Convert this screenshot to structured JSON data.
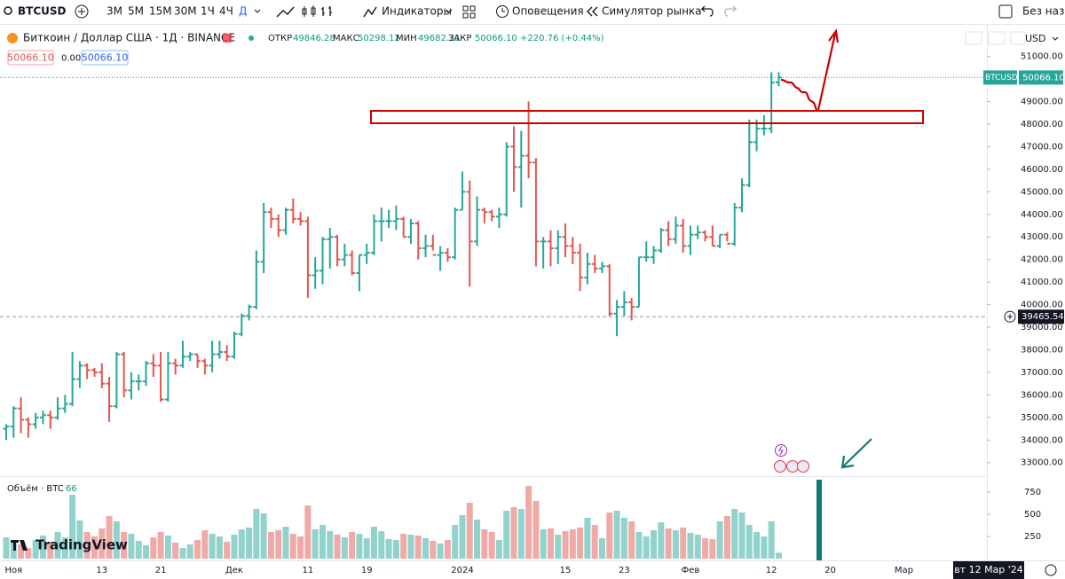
{
  "toolbar": {
    "symbol": "BTCUSD",
    "intervals": [
      "3М",
      "5М",
      "15М",
      "30М",
      "1Ч",
      "4Ч",
      "Д"
    ],
    "indicators": "Индикаторы",
    "alerts": "Оповещения",
    "replay": "Симулятор рынка",
    "layout": "Без назва"
  },
  "legend": {
    "title": "Биткоин / Доллар США · 1Д · BINANCE",
    "open_label": "ОТКР",
    "open": "49846.28",
    "high_label": "МАКС",
    "high": "50298.12",
    "low_label": "МИН",
    "low": "49682.21",
    "close_label": "ЗАКР",
    "close": "50066.10",
    "change": "+220.76 (+0.44%)",
    "sell": "50066.10",
    "spread": "0.00",
    "buy": "50066.10",
    "currency": "USD",
    "volume_title": "Объём · BTC"
  },
  "logo": "TradingView",
  "chart_data": {
    "type": "ohlc",
    "up_color": "#26a69a",
    "down_color": "#e0564f",
    "categories": [
      null,
      "Ноя",
      null,
      null,
      null,
      null,
      null,
      null,
      null,
      null,
      null,
      null,
      null,
      "13",
      null,
      null,
      null,
      null,
      null,
      null,
      null,
      "21",
      null,
      null,
      null,
      null,
      null,
      null,
      null,
      null,
      null,
      "Дек",
      null,
      null,
      null,
      null,
      null,
      null,
      null,
      null,
      null,
      "11",
      null,
      null,
      null,
      null,
      null,
      null,
      null,
      "19",
      null,
      null,
      null,
      null,
      null,
      null,
      null,
      null,
      null,
      null,
      null,
      null,
      "2024",
      null,
      null,
      null,
      null,
      null,
      null,
      null,
      null,
      null,
      null,
      null,
      null,
      null,
      "15",
      null,
      null,
      null,
      null,
      null,
      null,
      null,
      "23",
      null,
      null,
      null,
      null,
      null,
      null,
      null,
      null,
      "Фев",
      null,
      null,
      null,
      null,
      null,
      null,
      null,
      null,
      null,
      null,
      "12",
      null,
      null,
      null,
      null,
      null,
      null,
      null,
      "20",
      null,
      null,
      null,
      null,
      null,
      null,
      null,
      null,
      null,
      "Мар",
      null,
      null,
      null,
      null,
      null,
      null,
      null
    ],
    "ohlc": [
      [
        34500,
        34700,
        34000,
        34600
      ],
      [
        34600,
        35500,
        34100,
        35400
      ],
      [
        35400,
        35900,
        34300,
        34900
      ],
      [
        34900,
        35000,
        34100,
        34700
      ],
      [
        34700,
        35200,
        34500,
        35000
      ],
      [
        35000,
        35300,
        34700,
        35100
      ],
      [
        35100,
        35300,
        34500,
        35000
      ],
      [
        35000,
        35900,
        34900,
        35400
      ],
      [
        35400,
        36000,
        35200,
        35600
      ],
      [
        35600,
        37900,
        35500,
        36700
      ],
      [
        36700,
        37500,
        36300,
        37300
      ],
      [
        37300,
        37400,
        36700,
        37100
      ],
      [
        37100,
        37200,
        36800,
        37000
      ],
      [
        37000,
        37400,
        36300,
        36500
      ],
      [
        36500,
        36800,
        34800,
        35500
      ],
      [
        35500,
        37900,
        35400,
        37800
      ],
      [
        37800,
        37900,
        35900,
        36200
      ],
      [
        36200,
        37000,
        35800,
        36600
      ],
      [
        36600,
        36900,
        36200,
        36600
      ],
      [
        36600,
        37500,
        36400,
        37400
      ],
      [
        37400,
        37800,
        36800,
        37300
      ],
      [
        37300,
        37900,
        35700,
        35800
      ],
      [
        35800,
        37900,
        35700,
        37400
      ],
      [
        37400,
        37600,
        36900,
        37300
      ],
      [
        37300,
        38400,
        37200,
        37700
      ],
      [
        37700,
        37900,
        37500,
        37800
      ],
      [
        37800,
        37800,
        37200,
        37500
      ],
      [
        37500,
        37600,
        36900,
        37300
      ],
      [
        37300,
        38400,
        37000,
        37800
      ],
      [
        37800,
        38400,
        37600,
        37900
      ],
      [
        37900,
        38200,
        37500,
        37700
      ],
      [
        37700,
        38800,
        37600,
        38700
      ],
      [
        38700,
        39600,
        38600,
        39500
      ],
      [
        39500,
        40000,
        39300,
        39900
      ],
      [
        39900,
        42400,
        39800,
        41900
      ],
      [
        41900,
        44500,
        41400,
        44100
      ],
      [
        44100,
        44300,
        43400,
        43800
      ],
      [
        43800,
        44000,
        43000,
        43300
      ],
      [
        43300,
        44300,
        43100,
        44200
      ],
      [
        44200,
        44700,
        43600,
        43800
      ],
      [
        43800,
        44100,
        43500,
        43700
      ],
      [
        43700,
        43900,
        40300,
        41300
      ],
      [
        41300,
        42100,
        40700,
        41500
      ],
      [
        41500,
        43000,
        40900,
        42900
      ],
      [
        42900,
        43400,
        41600,
        43000
      ],
      [
        43000,
        43100,
        41700,
        42000
      ],
      [
        42000,
        42700,
        41700,
        42200
      ],
      [
        42200,
        42400,
        41300,
        41400
      ],
      [
        41400,
        42200,
        40600,
        42200
      ],
      [
        42200,
        42700,
        41800,
        42300
      ],
      [
        42300,
        44000,
        42200,
        43700
      ],
      [
        43700,
        44300,
        42800,
        43700
      ],
      [
        43700,
        44200,
        43400,
        43700
      ],
      [
        43700,
        44400,
        43300,
        43800
      ],
      [
        43800,
        43900,
        43000,
        43000
      ],
      [
        43000,
        43800,
        42700,
        43600
      ],
      [
        43600,
        43700,
        42000,
        42500
      ],
      [
        42500,
        43100,
        42100,
        42600
      ],
      [
        42600,
        43100,
        42400,
        42200
      ],
      [
        42200,
        42600,
        41500,
        42300
      ],
      [
        42300,
        42500,
        41900,
        42100
      ],
      [
        42100,
        44300,
        42000,
        44200
      ],
      [
        44200,
        45900,
        44200,
        45000
      ],
      [
        45000,
        45500,
        40800,
        42800
      ],
      [
        42800,
        44800,
        42600,
        44200
      ],
      [
        44200,
        44300,
        43600,
        44100
      ],
      [
        44100,
        44200,
        43700,
        43900
      ],
      [
        43900,
        44300,
        43400,
        44000
      ],
      [
        44000,
        47200,
        43900,
        47000
      ],
      [
        47000,
        47900,
        45000,
        46100
      ],
      [
        46100,
        47700,
        44300,
        46600
      ],
      [
        46600,
        49000,
        45600,
        46300
      ],
      [
        46300,
        46500,
        41700,
        42800
      ],
      [
        42800,
        43000,
        41600,
        42800
      ],
      [
        42800,
        43300,
        41700,
        42500
      ],
      [
        42500,
        43300,
        41800,
        43000
      ],
      [
        43000,
        43600,
        42100,
        42600
      ],
      [
        42600,
        43000,
        41800,
        42300
      ],
      [
        42300,
        42700,
        40600,
        41200
      ],
      [
        41200,
        42300,
        40900,
        41800
      ],
      [
        41800,
        42200,
        41400,
        41600
      ],
      [
        41600,
        41900,
        41400,
        41700
      ],
      [
        41700,
        41800,
        39500,
        39600
      ],
      [
        39600,
        40200,
        38600,
        39900
      ],
      [
        39900,
        40600,
        39500,
        40100
      ],
      [
        40100,
        40300,
        39300,
        39900
      ],
      [
        39900,
        42100,
        39900,
        42100
      ],
      [
        42100,
        42800,
        41900,
        42100
      ],
      [
        42100,
        42600,
        41800,
        42400
      ],
      [
        42400,
        43400,
        42300,
        43300
      ],
      [
        43300,
        43700,
        42600,
        42900
      ],
      [
        42900,
        43900,
        42700,
        43500
      ],
      [
        43500,
        43800,
        42300,
        42600
      ],
      [
        42600,
        43500,
        42200,
        43100
      ],
      [
        43100,
        43500,
        42900,
        43200
      ],
      [
        43200,
        43300,
        42800,
        43000
      ],
      [
        43000,
        43500,
        42600,
        42600
      ],
      [
        42600,
        43100,
        42500,
        43100
      ],
      [
        43100,
        43200,
        42800,
        42700
      ],
      [
        42700,
        44500,
        42600,
        44300
      ],
      [
        44300,
        45600,
        44100,
        45300
      ],
      [
        45300,
        48200,
        45200,
        47200
      ],
      [
        47200,
        48200,
        46800,
        47800
      ],
      [
        47800,
        48400,
        47500,
        47800
      ],
      [
        47800,
        50300,
        47600,
        49846.28
      ],
      [
        49846.28,
        50298.12,
        49682.21,
        50066.1
      ],
      null,
      null,
      null,
      null,
      null,
      null,
      null,
      null,
      null,
      null,
      null,
      null,
      null,
      null,
      null,
      null,
      null,
      null,
      null,
      null,
      null,
      null,
      null,
      null
    ],
    "volume": [
      240,
      180,
      160,
      120,
      210,
      260,
      190,
      300,
      240,
      720,
      430,
      300,
      250,
      340,
      480,
      420,
      300,
      280,
      200,
      150,
      240,
      300,
      260,
      180,
      120,
      160,
      210,
      320,
      280,
      250,
      190,
      270,
      330,
      350,
      560,
      510,
      300,
      320,
      360,
      280,
      250,
      600,
      330,
      380,
      310,
      270,
      240,
      300,
      280,
      230,
      360,
      310,
      220,
      210,
      280,
      270,
      260,
      230,
      200,
      170,
      210,
      380,
      490,
      630,
      440,
      330,
      300,
      210,
      540,
      580,
      560,
      820,
      650,
      330,
      340,
      270,
      310,
      330,
      350,
      460,
      380,
      230,
      520,
      540,
      460,
      420,
      300,
      250,
      320,
      410,
      340,
      320,
      350,
      290,
      270,
      230,
      220,
      420,
      480,
      560,
      520,
      380,
      300,
      250,
      420,
      66,
      null,
      null,
      null,
      null,
      null,
      null,
      null,
      null,
      null,
      null,
      null,
      null,
      null,
      null,
      null,
      null,
      null,
      null,
      null,
      null,
      null,
      null,
      null,
      null
    ],
    "ylim": [
      32400,
      51300
    ],
    "yticks": [
      {
        "value": 33000,
        "label": "33000.00"
      },
      {
        "value": 34000,
        "label": "34000.00"
      },
      {
        "value": 35000,
        "label": "35000.00"
      },
      {
        "value": 36000,
        "label": "36000.00"
      },
      {
        "value": 37000,
        "label": "37000.00"
      },
      {
        "value": 38000,
        "label": "38000.00"
      },
      {
        "value": 39000,
        "label": "39000.00"
      },
      {
        "value": 40000,
        "label": "40000.00"
      },
      {
        "value": 41000,
        "label": "41000.00"
      },
      {
        "value": 42000,
        "label": "42000.00"
      },
      {
        "value": 43000,
        "label": "43000.00"
      },
      {
        "value": 44000,
        "label": "44000.00"
      },
      {
        "value": 45000,
        "label": "45000.00"
      },
      {
        "value": 46000,
        "label": "46000.00"
      },
      {
        "value": 47000,
        "label": "47000.00"
      },
      {
        "value": 48000,
        "label": "48000.00"
      },
      {
        "value": 49000,
        "label": "49000.00"
      },
      {
        "value": 50000,
        "label": "50000.00"
      },
      {
        "value": 51000,
        "label": "51000.00"
      }
    ],
    "vlim": [
      0,
      930
    ],
    "vticks": [
      250,
      500,
      750
    ],
    "last_price": {
      "value": 50066.1,
      "label": "50066.10"
    },
    "symbol_tag": "BTCUSD",
    "crosshair": 39465.54,
    "cursor_date": "вт 12 Мар '24"
  }
}
